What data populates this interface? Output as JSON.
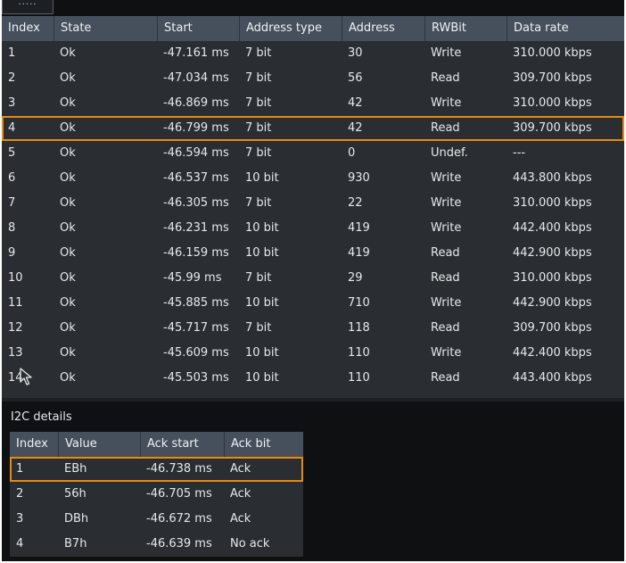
{
  "handle": {
    "label": "·····"
  },
  "main_table": {
    "columns": [
      "Index",
      "State",
      "Start",
      "Address type",
      "Address",
      "RWBit",
      "Data rate"
    ],
    "selected_index": 3,
    "rows": [
      [
        "1",
        "Ok",
        "-47.161 ms",
        "7 bit",
        "30",
        "Write",
        "310.000 kbps"
      ],
      [
        "2",
        "Ok",
        "-47.034 ms",
        "7 bit",
        "56",
        "Read",
        "309.700 kbps"
      ],
      [
        "3",
        "Ok",
        "-46.869 ms",
        "7 bit",
        "42",
        "Write",
        "310.000 kbps"
      ],
      [
        "4",
        "Ok",
        "-46.799 ms",
        "7 bit",
        "42",
        "Read",
        "309.700 kbps"
      ],
      [
        "5",
        "Ok",
        "-46.594 ms",
        "7 bit",
        "0",
        "Undef.",
        "---"
      ],
      [
        "6",
        "Ok",
        "-46.537 ms",
        "10 bit",
        "930",
        "Write",
        "443.800 kbps"
      ],
      [
        "7",
        "Ok",
        "-46.305 ms",
        "7 bit",
        "22",
        "Write",
        "310.000 kbps"
      ],
      [
        "8",
        "Ok",
        "-46.231 ms",
        "10 bit",
        "419",
        "Write",
        "442.400 kbps"
      ],
      [
        "9",
        "Ok",
        "-46.159 ms",
        "10 bit",
        "419",
        "Read",
        "442.900 kbps"
      ],
      [
        "10",
        "Ok",
        "-45.99 ms",
        "7 bit",
        "29",
        "Read",
        "310.000 kbps"
      ],
      [
        "11",
        "Ok",
        "-45.885 ms",
        "10 bit",
        "710",
        "Write",
        "442.900 kbps"
      ],
      [
        "12",
        "Ok",
        "-45.717 ms",
        "7 bit",
        "118",
        "Read",
        "309.700 kbps"
      ],
      [
        "13",
        "Ok",
        "-45.609 ms",
        "10 bit",
        "110",
        "Write",
        "442.400 kbps"
      ],
      [
        "14",
        "Ok",
        "-45.503 ms",
        "10 bit",
        "110",
        "Read",
        "443.400 kbps"
      ]
    ]
  },
  "details": {
    "title": "I2C details",
    "columns": [
      "Index",
      "Value",
      "Ack start",
      "Ack bit"
    ],
    "selected_index": 0,
    "rows": [
      [
        "1",
        "EBh",
        "-46.738 ms",
        "Ack"
      ],
      [
        "2",
        "56h",
        "-46.705 ms",
        "Ack"
      ],
      [
        "3",
        "DBh",
        "-46.672 ms",
        "Ack"
      ],
      [
        "4",
        "B7h",
        "-46.639 ms",
        "No ack"
      ]
    ]
  },
  "colors": {
    "header_bg": "#46505c",
    "row_bg": "#2a2e32",
    "highlight": "#e58a16",
    "background": "#0e1012"
  },
  "cursor": {
    "icon": "mouse-pointer-icon"
  }
}
